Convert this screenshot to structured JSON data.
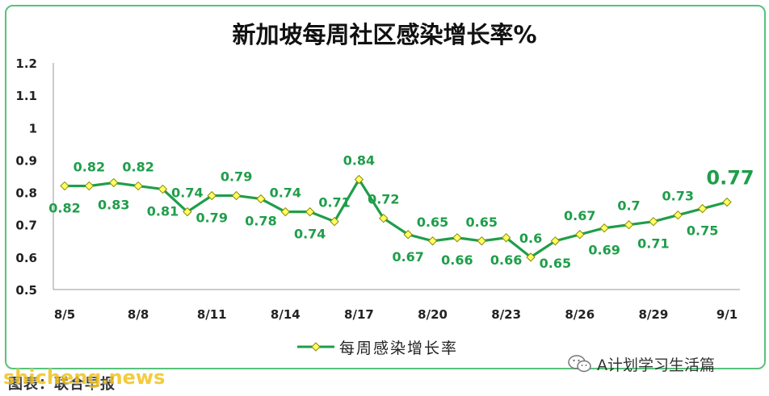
{
  "chart_data": {
    "type": "line",
    "title": "新加坡每周社区感染增长率%",
    "categories": [
      "8/5",
      "8/6",
      "8/7",
      "8/8",
      "8/9",
      "8/10",
      "8/11",
      "8/12",
      "8/13",
      "8/14",
      "8/15",
      "8/16",
      "8/17",
      "8/18",
      "8/19",
      "8/20",
      "8/21",
      "8/22",
      "8/23",
      "8/24",
      "8/25",
      "8/26",
      "8/27",
      "8/28",
      "8/29",
      "8/30",
      "8/31",
      "9/1"
    ],
    "x_tick_labels": [
      "8/5",
      "8/8",
      "8/11",
      "8/14",
      "8/17",
      "8/20",
      "8/23",
      "8/26",
      "8/29",
      "9/1"
    ],
    "series": [
      {
        "name": "每周感染增长率",
        "values": [
          0.82,
          0.82,
          0.83,
          0.82,
          0.81,
          0.74,
          0.79,
          0.79,
          0.78,
          0.74,
          0.74,
          0.71,
          0.84,
          0.72,
          0.67,
          0.65,
          0.66,
          0.65,
          0.66,
          0.6,
          0.65,
          0.67,
          0.69,
          0.7,
          0.71,
          0.73,
          0.75,
          0.77
        ]
      }
    ],
    "data_labels": [
      "0.82",
      "0.82",
      "0.83",
      "0.82",
      "0.81",
      "0.74",
      "0.79",
      "0.79",
      "0.78",
      "0.74",
      "0.74",
      "0.71",
      "0.84",
      "0.72",
      "0.67",
      "0.65",
      "0.66",
      "0.65",
      "0.66",
      "0.6",
      "0.65",
      "0.67",
      "0.69",
      "0.7",
      "0.71",
      "0.73",
      "0.75",
      "0.77"
    ],
    "label_indices": [
      0,
      1,
      2,
      3,
      4,
      5,
      6,
      7,
      8,
      9,
      10,
      11,
      12,
      13,
      14,
      15,
      16,
      17,
      18,
      19,
      20,
      21,
      22,
      23,
      24,
      25,
      26,
      27
    ],
    "label_positions": [
      "below",
      "above",
      "below",
      "above",
      "below",
      "above",
      "below",
      "above",
      "below",
      "above",
      "below",
      "above",
      "above",
      "above",
      "below",
      "above",
      "below",
      "above",
      "below",
      "above",
      "below",
      "above",
      "below",
      "above",
      "below",
      "above",
      "below",
      "above"
    ],
    "highlight_index": 27,
    "ylim": [
      0.5,
      1.2
    ],
    "y_ticks": [
      "0.5",
      "0.6",
      "0.7",
      "0.8",
      "0.9",
      "1",
      "1.1",
      "1.2"
    ],
    "grid": false,
    "legend": "bottom",
    "colors": {
      "line": "#1f9e4a",
      "marker_fill": "#ffff66",
      "marker_stroke": "#8a8a00",
      "label": "#1f9e4a",
      "frame": "#58c27a"
    }
  },
  "footer": {
    "source": "图表：联合早报",
    "wechat_account": "A计划学习生活篇",
    "watermark": "shicheng.news"
  }
}
